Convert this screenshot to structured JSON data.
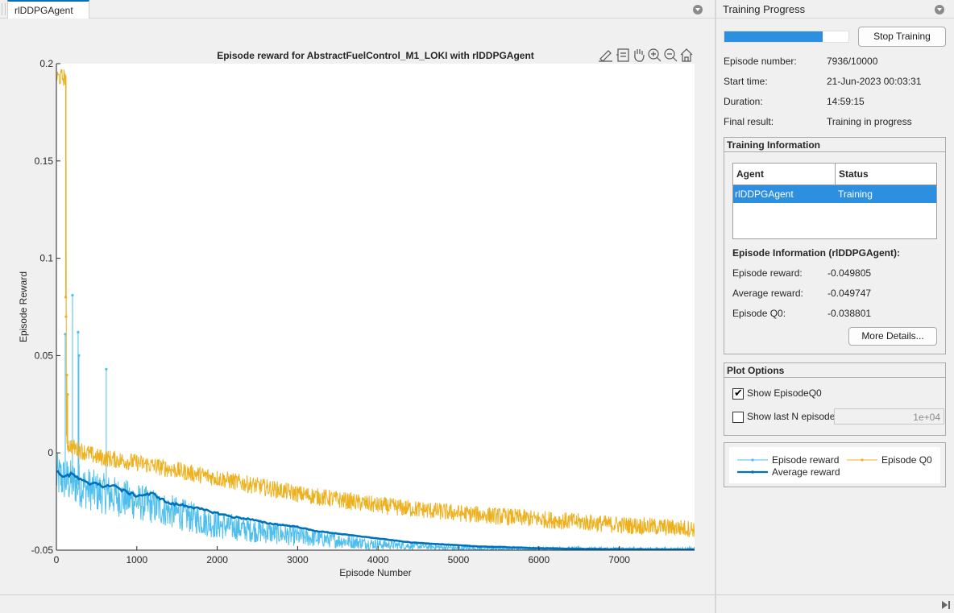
{
  "document_tab": {
    "label": "rlDDPGAgent"
  },
  "plot": {
    "title": "Episode reward for AbstractFuelControl_M1_LOKI with rlDDPGAgent",
    "toolbar_icons": [
      "edit-icon",
      "data-tip-icon",
      "pan-icon",
      "zoom-in-icon",
      "zoom-out-icon",
      "home-icon"
    ]
  },
  "chart_data": {
    "type": "line",
    "title": "Episode reward for AbstractFuelControl_M1_LOKI with rlDDPGAgent",
    "xlabel": "Episode Number",
    "ylabel": "Episode Reward",
    "xlim": [
      0,
      7936
    ],
    "ylim": [
      -0.05,
      0.2
    ],
    "xticks": [
      0,
      1000,
      2000,
      3000,
      4000,
      5000,
      6000,
      7000
    ],
    "yticks": [
      -0.05,
      0,
      0.05,
      0.1,
      0.15,
      0.2
    ],
    "xtick_labels": [
      "0",
      "1000",
      "2000",
      "3000",
      "4000",
      "5000",
      "6000",
      "7000"
    ],
    "ytick_labels": [
      "-0.05",
      "0",
      "0.05",
      "0.1",
      "0.15",
      "0.2"
    ],
    "series": [
      {
        "name": "Episode reward",
        "color": "#4dbeee",
        "marker": "dot",
        "trend_x": [
          0,
          250,
          500,
          1000,
          1500,
          2000,
          2500,
          3000,
          3500,
          4000,
          4500,
          5000,
          6000,
          7000,
          7936
        ],
        "trend_y": [
          -0.012,
          -0.016,
          -0.02,
          -0.025,
          -0.031,
          -0.037,
          -0.04,
          -0.043,
          -0.045,
          -0.047,
          -0.048,
          -0.049,
          -0.0495,
          -0.0497,
          -0.0498
        ],
        "spikes": [
          [
            110,
            0.061
          ],
          [
            200,
            0.081
          ],
          [
            270,
            0.062
          ],
          [
            620,
            0.043
          ],
          [
            280,
            0.05
          ]
        ]
      },
      {
        "name": "Episode Q0",
        "color": "#edb120",
        "marker": "dot",
        "trend_x": [
          0,
          120,
          121,
          200,
          500,
          1000,
          1500,
          2000,
          2500,
          3000,
          3500,
          4000,
          5000,
          6000,
          7000,
          7936
        ],
        "trend_y": [
          0.193,
          0.193,
          0.005,
          0.003,
          -0.002,
          -0.005,
          -0.009,
          -0.013,
          -0.017,
          -0.021,
          -0.024,
          -0.027,
          -0.031,
          -0.034,
          -0.037,
          -0.039
        ],
        "spikes": [
          [
            115,
            0.08
          ],
          [
            120,
            0.07
          ],
          [
            130,
            0.04
          ],
          [
            140,
            0.03
          ]
        ]
      },
      {
        "name": "Average reward",
        "color": "#0072bd",
        "marker": "dot",
        "x": [
          0,
          100,
          200,
          300,
          400,
          500,
          600,
          700,
          800,
          1000,
          1200,
          1400,
          1600,
          1800,
          2000,
          2200,
          2400,
          2600,
          2800,
          3000,
          3200,
          3400,
          3600,
          3800,
          4000,
          4400,
          4800,
          5200,
          5600,
          6000,
          6500,
          7000,
          7500,
          7936
        ],
        "y": [
          -0.01,
          -0.012,
          -0.011,
          -0.014,
          -0.016,
          -0.015,
          -0.018,
          -0.016,
          -0.019,
          -0.022,
          -0.021,
          -0.026,
          -0.027,
          -0.029,
          -0.031,
          -0.033,
          -0.034,
          -0.036,
          -0.037,
          -0.038,
          -0.04,
          -0.041,
          -0.042,
          -0.043,
          -0.044,
          -0.046,
          -0.047,
          -0.048,
          -0.0485,
          -0.049,
          -0.0493,
          -0.0495,
          -0.0496,
          -0.0497
        ]
      }
    ],
    "grid": false,
    "background": "#ffffff"
  },
  "training_progress": {
    "header": "Training Progress",
    "progress_fraction": 0.7936,
    "stop_label": "Stop Training",
    "fields": [
      {
        "label": "Episode number:",
        "value": "7936/10000"
      },
      {
        "label": "Start time:",
        "value": "21-Jun-2023 00:03:31"
      },
      {
        "label": "Duration:",
        "value": "14:59:15"
      },
      {
        "label": "Final result:",
        "value": "Training in progress"
      }
    ]
  },
  "training_information": {
    "title": "Training Information",
    "columns": [
      "Agent",
      "Status"
    ],
    "rows": [
      {
        "agent": "rlDDPGAgent",
        "status": "Training"
      }
    ],
    "episode_info_title": "Episode Information (rlDDPGAgent):",
    "episode_fields": [
      {
        "label": "Episode reward:",
        "value": "-0.049805"
      },
      {
        "label": "Average reward:",
        "value": "-0.049747"
      },
      {
        "label": "Episode Q0:",
        "value": "-0.038801"
      }
    ],
    "more_label": "More Details..."
  },
  "plot_options": {
    "title": "Plot Options",
    "show_q0_label": "Show EpisodeQ0",
    "show_q0_checked": true,
    "show_last_label": "Show last N episodes",
    "show_last_checked": false,
    "last_n_value": "1e+04"
  },
  "legend": {
    "items": [
      {
        "label": "Episode reward",
        "color": "#4dbeee"
      },
      {
        "label": "Episode Q0",
        "color": "#edb120"
      },
      {
        "label": "Average reward",
        "color": "#0072bd"
      }
    ]
  }
}
